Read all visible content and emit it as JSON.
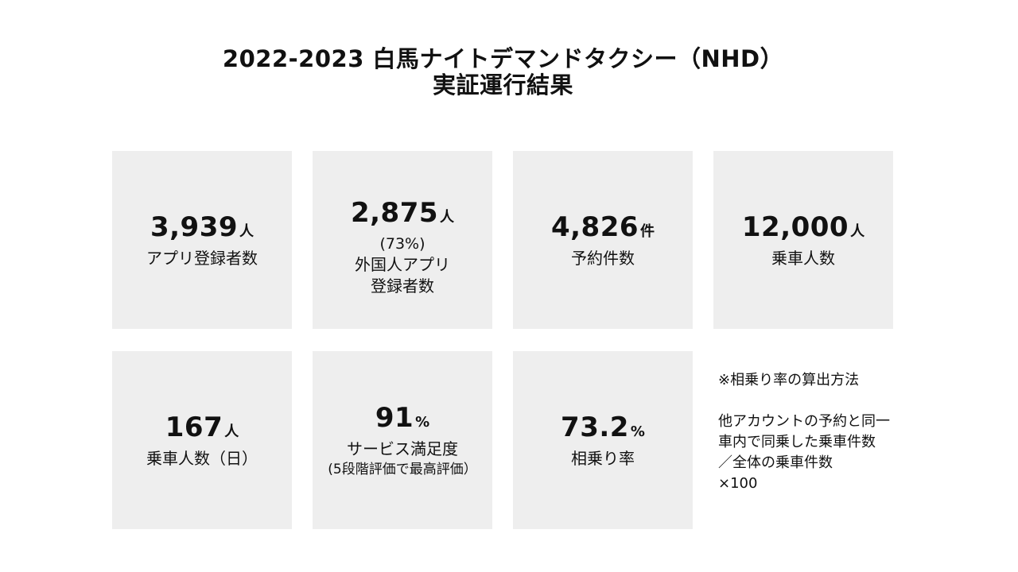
{
  "title": {
    "line1": "2022-2023 白馬ナイトデマンドタクシー（NHD）",
    "line2": "実証運行結果"
  },
  "cards": [
    {
      "value": "3,939",
      "unit": "人",
      "label": "アプリ登録者数"
    },
    {
      "value": "2,875",
      "unit": "人",
      "percent": "(73%)",
      "label_line1": "外国人アプリ",
      "label_line2": "登録者数"
    },
    {
      "value": "4,826",
      "unit": "件",
      "label": "予約件数"
    },
    {
      "value": "12,000",
      "unit": "人",
      "label": "乗車人数"
    },
    {
      "value": "167",
      "unit": "人",
      "label": "乗車人数（日）"
    },
    {
      "value": "91",
      "unit": "%",
      "label": "サービス満足度",
      "sub": "(5段階評価で最高評価）"
    },
    {
      "value": "73.2",
      "unit": "%",
      "label": "相乗り率"
    }
  ],
  "note": {
    "heading": "※相乗り率の算出方法",
    "line1": "他アカウントの予約と同一",
    "line2": "車内で同乗した乗車件数",
    "line3": "／全体の乗車件数",
    "line4": "×100"
  }
}
